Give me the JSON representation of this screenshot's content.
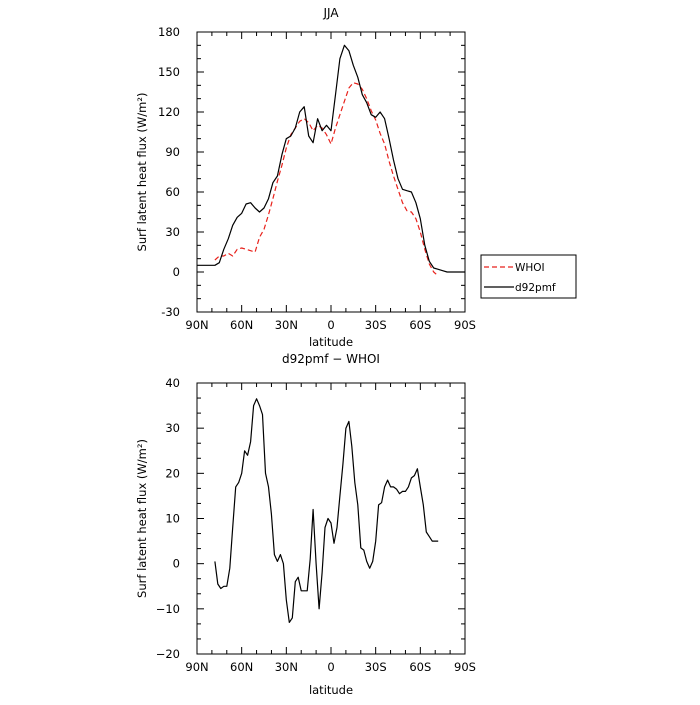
{
  "chart_data": [
    {
      "type": "line",
      "title": "JJA",
      "xlabel": "latitude",
      "ylabel": "Surf latent heat flux (W/m²)",
      "xlim": [
        90,
        -90
      ],
      "ylim": [
        -30,
        180
      ],
      "x_ticks": [
        90,
        60,
        30,
        0,
        -30,
        -60,
        -90
      ],
      "x_tick_labels": [
        "90N",
        "60N",
        "30N",
        "0",
        "30S",
        "60S",
        "90S"
      ],
      "y_ticks": [
        -30,
        0,
        30,
        60,
        90,
        120,
        150,
        180
      ],
      "y_tick_labels": [
        "-30",
        "0",
        "30",
        "60",
        "90",
        "120",
        "150",
        "180"
      ],
      "legend": {
        "placement": "outside-right"
      },
      "series": [
        {
          "name": "WHOI",
          "color": "#e8221c",
          "style": "dashed",
          "x": [
            78,
            75,
            72,
            69,
            66,
            63,
            60,
            57,
            54,
            51,
            48,
            45,
            42,
            39,
            36,
            33,
            30,
            27,
            24,
            21,
            18,
            15,
            12,
            9,
            6,
            3,
            0,
            -3,
            -6,
            -9,
            -12,
            -15,
            -18,
            -21,
            -24,
            -27,
            -30,
            -33,
            -36,
            -39,
            -42,
            -45,
            -48,
            -51,
            -54,
            -57,
            -60,
            -63,
            -66,
            -69,
            -72
          ],
          "y": [
            9,
            12,
            12,
            14,
            12,
            17,
            18,
            17,
            16,
            15,
            26,
            32,
            43,
            55,
            68,
            80,
            93,
            103,
            108,
            113,
            115,
            112,
            106,
            110,
            108,
            103,
            96,
            108,
            118,
            128,
            138,
            142,
            141,
            137,
            130,
            121,
            114,
            104,
            96,
            83,
            72,
            62,
            52,
            46,
            45,
            40,
            30,
            17,
            6,
            0,
            -3
          ]
        },
        {
          "name": "d92pmf",
          "color": "#000000",
          "style": "solid",
          "x": [
            90,
            87,
            84,
            81,
            78,
            75,
            72,
            69,
            66,
            63,
            60,
            57,
            54,
            51,
            48,
            45,
            42,
            39,
            36,
            33,
            30,
            27,
            24,
            21,
            18,
            15,
            12,
            9,
            6,
            3,
            0,
            -3,
            -6,
            -9,
            -12,
            -15,
            -18,
            -21,
            -24,
            -27,
            -30,
            -33,
            -36,
            -39,
            -42,
            -45,
            -48,
            -51,
            -54,
            -57,
            -60,
            -63,
            -66,
            -69,
            -72,
            -75,
            -78,
            -81,
            -84,
            -87,
            -90
          ],
          "y": [
            5,
            5,
            5,
            5,
            5,
            7,
            17,
            25,
            35,
            41,
            44,
            51,
            52,
            48,
            45,
            48,
            55,
            67,
            72,
            88,
            100,
            102,
            108,
            120,
            124,
            102,
            97,
            115,
            106,
            110,
            106,
            133,
            160,
            170,
            166,
            155,
            146,
            133,
            127,
            118,
            116,
            120,
            115,
            100,
            84,
            70,
            62,
            61,
            60,
            52,
            40,
            20,
            8,
            3,
            2,
            1,
            0,
            0,
            0,
            0,
            0
          ]
        }
      ]
    },
    {
      "type": "line",
      "title": "d92pmf − WHOI",
      "xlabel": "latitude",
      "ylabel": "Surf latent heat flux (W/m²)",
      "xlim": [
        90,
        -90
      ],
      "ylim": [
        -20,
        40
      ],
      "x_ticks": [
        90,
        60,
        30,
        0,
        -30,
        -60,
        -90
      ],
      "x_tick_labels": [
        "90N",
        "60N",
        "30N",
        "0",
        "30S",
        "60S",
        "90S"
      ],
      "y_ticks": [
        -20,
        -10,
        0,
        10,
        20,
        30,
        40
      ],
      "y_tick_labels": [
        "−20",
        "−10",
        "0",
        "10",
        "20",
        "30",
        "40"
      ],
      "series": [
        {
          "name": "",
          "color": "#000000",
          "style": "solid",
          "x": [
            78,
            76,
            74,
            72,
            70,
            68,
            66,
            64,
            62,
            60,
            58,
            56,
            54,
            52,
            50,
            48,
            46,
            44,
            42,
            40,
            38,
            36,
            34,
            32,
            30,
            28,
            26,
            24,
            22,
            20,
            18,
            16,
            14,
            12,
            10,
            8,
            6,
            4,
            2,
            0,
            -2,
            -4,
            -6,
            -8,
            -10,
            -12,
            -14,
            -16,
            -18,
            -20,
            -22,
            -24,
            -26,
            -28,
            -30,
            -32,
            -34,
            -36,
            -38,
            -40,
            -42,
            -44,
            -46,
            -48,
            -50,
            -52,
            -54,
            -56,
            -58,
            -60,
            -62,
            -64,
            -66,
            -68,
            -70,
            -72
          ],
          "y": [
            0.5,
            -4.5,
            -5.5,
            -5,
            -5,
            -1,
            8,
            17,
            18,
            20,
            25,
            24,
            27,
            35,
            36.5,
            35,
            33,
            20,
            17,
            11,
            2,
            0.5,
            2,
            0,
            -8,
            -13,
            -12,
            -4,
            -3,
            -6,
            -6,
            -6,
            1,
            12,
            0,
            -10,
            -2,
            8,
            10,
            9,
            4.5,
            8,
            15,
            22,
            30,
            31.5,
            26,
            18,
            13,
            3.5,
            3,
            0.5,
            -1,
            0.5,
            5,
            13,
            13.5,
            17,
            18.5,
            17,
            17,
            16.5,
            15.5,
            16,
            16,
            17,
            19,
            19.5,
            21,
            17,
            13,
            7,
            6,
            5,
            5,
            5
          ]
        }
      ]
    }
  ]
}
